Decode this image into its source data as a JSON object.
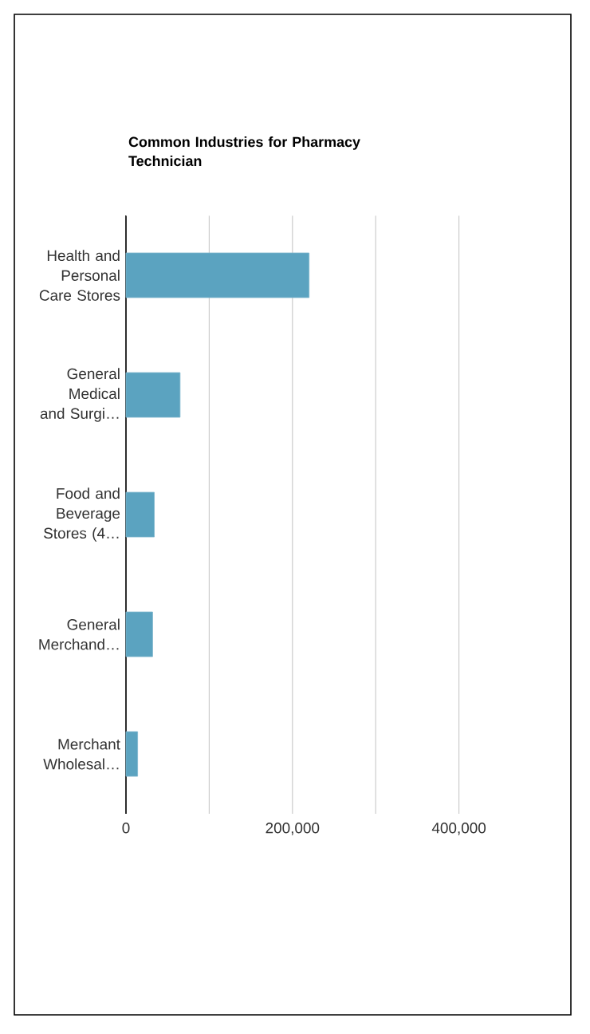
{
  "chart_data": {
    "type": "bar",
    "orientation": "horizontal",
    "title": "Common Industries for Pharmacy Technician",
    "categories": [
      "Health and Personal Care Stores",
      "General Medical and Surgi…",
      "Food and Beverage Stores (4…",
      "General Merchand…",
      "Merchant Wholesal…"
    ],
    "values": [
      220000,
      65000,
      34000,
      32000,
      14000
    ],
    "color": "#5ba3c0",
    "xlim": [
      0,
      500000
    ],
    "xticks": [
      0,
      {
        "value": 100000,
        "label": null
      },
      {
        "value": 200000,
        "label": "200,000"
      },
      {
        "value": 300000,
        "label": null
      },
      {
        "value": 400000,
        "label": "400,000"
      }
    ],
    "grid": "x"
  }
}
